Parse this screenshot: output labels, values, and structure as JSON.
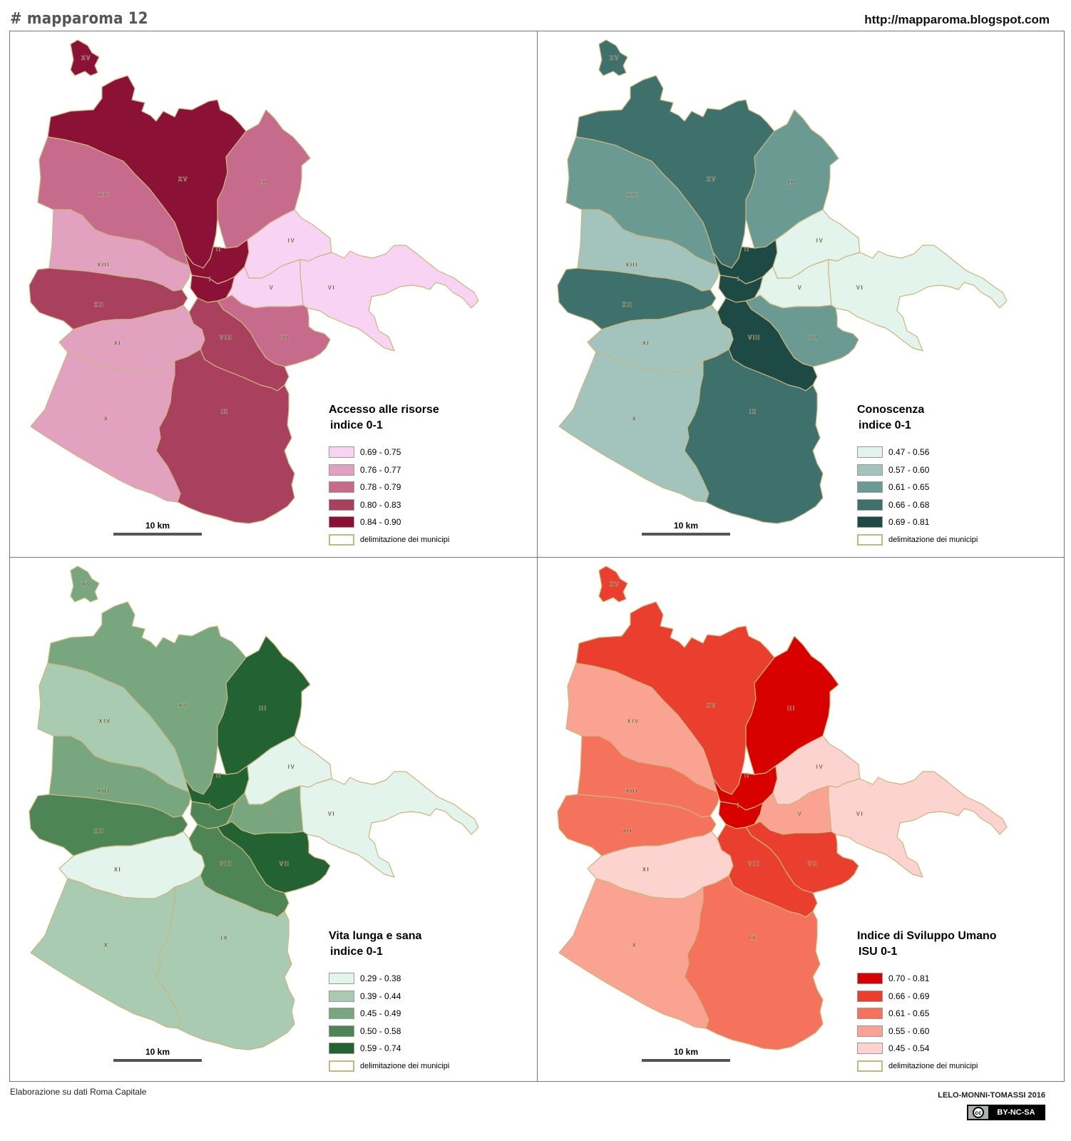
{
  "header": {
    "tag": "# mapparoma 12",
    "url": "http://mapparoma.blogspot.com"
  },
  "footer": {
    "source": "Elaborazione su dati Roma Capitale",
    "credit": "LELO-MONNI-TOMASSI 2016",
    "license": "BY-NC-SA",
    "license_icon": "cc-icon"
  },
  "boundary_color": "#c9b77a",
  "district_ids": [
    "XV-north",
    "XV",
    "XIV",
    "III",
    "XIII",
    "II",
    "IV",
    "I",
    "V",
    "VI",
    "XII",
    "VII",
    "VIII",
    "XI",
    "X",
    "IX"
  ],
  "district_labels": [
    "XV",
    "XV",
    "XIV",
    "III",
    "XIII",
    "II",
    "IV",
    "I",
    "V",
    "VI",
    "XII",
    "VII",
    "VIII",
    "XI",
    "X",
    "IX"
  ],
  "panels": [
    {
      "id": "risorse",
      "legend": {
        "title": "Accesso alle risorse",
        "subtitle": "indice 0-1",
        "classes": [
          {
            "label": "0.69 - 0.75",
            "color": "#f9d3f3"
          },
          {
            "label": "0.76 - 0.77",
            "color": "#e3a1c0"
          },
          {
            "label": "0.78 - 0.79",
            "color": "#c76b8c"
          },
          {
            "label": "0.80 - 0.83",
            "color": "#a9405e"
          },
          {
            "label": "0.84 - 0.90",
            "color": "#8b1236"
          }
        ],
        "boundary_label": "delimitazione dei municipi"
      },
      "scale": "10 km",
      "district_class": [
        4,
        4,
        2,
        2,
        1,
        4,
        0,
        4,
        0,
        0,
        3,
        2,
        3,
        1,
        1,
        3
      ]
    },
    {
      "id": "conoscenza",
      "legend": {
        "title": "Conoscenza",
        "subtitle": "indice 0-1",
        "classes": [
          {
            "label": "0.47 - 0.56",
            "color": "#e3f4ec"
          },
          {
            "label": "0.57 - 0.60",
            "color": "#a3c4bc"
          },
          {
            "label": "0.61 - 0.65",
            "color": "#6b9a93"
          },
          {
            "label": "0.66 - 0.68",
            "color": "#3e716c"
          },
          {
            "label": "0.69 - 0.81",
            "color": "#1e4a45"
          }
        ],
        "boundary_label": "delimitazione dei municipi"
      },
      "scale": "10 km",
      "district_class": [
        3,
        3,
        2,
        2,
        1,
        4,
        0,
        4,
        0,
        0,
        3,
        2,
        4,
        1,
        1,
        3
      ]
    },
    {
      "id": "vita",
      "legend": {
        "title": "Vita lunga e sana",
        "subtitle": "indice 0-1",
        "classes": [
          {
            "label": "0.29 - 0.38",
            "color": "#e3f4ec"
          },
          {
            "label": "0.39 - 0.44",
            "color": "#a8cbb2"
          },
          {
            "label": "0.45 - 0.49",
            "color": "#78a67f"
          },
          {
            "label": "0.50 - 0.58",
            "color": "#4d8557"
          },
          {
            "label": "0.59 - 0.74",
            "color": "#236333"
          }
        ],
        "boundary_label": "delimitazione dei municipi"
      },
      "scale": "10 km",
      "district_class": [
        2,
        2,
        1,
        4,
        2,
        4,
        0,
        3,
        2,
        0,
        3,
        4,
        3,
        0,
        1,
        1
      ]
    },
    {
      "id": "isu",
      "legend": {
        "title": "Indice di Sviluppo Umano",
        "subtitle": "ISU 0-1",
        "classes": [
          {
            "label": "0.70 - 0.81",
            "color": "#d90000"
          },
          {
            "label": "0.66 - 0.69",
            "color": "#ea3f2f"
          },
          {
            "label": "0.61 - 0.65",
            "color": "#f5735d"
          },
          {
            "label": "0.55 - 0.60",
            "color": "#fba393"
          },
          {
            "label": "0.45 - 0.54",
            "color": "#fdd3cf"
          }
        ],
        "boundary_label": "delimitazione dei municipi"
      },
      "scale": "10 km",
      "district_class": [
        1,
        1,
        3,
        0,
        2,
        0,
        4,
        0,
        3,
        4,
        2,
        1,
        1,
        4,
        3,
        2
      ]
    }
  ]
}
